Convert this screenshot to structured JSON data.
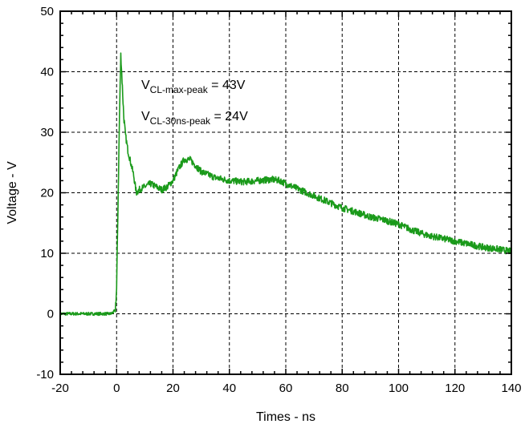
{
  "colors": {
    "series": "#1a9a1a",
    "axis": "#000000",
    "grid": "#000000"
  },
  "chart_data": {
    "type": "line",
    "xlabel": "Times - ns",
    "ylabel": "Voltage - V",
    "xlim": [
      -20,
      140
    ],
    "ylim": [
      -10,
      50
    ],
    "xticks": [
      -20,
      0,
      20,
      40,
      60,
      80,
      100,
      120,
      140
    ],
    "yticks": [
      -10,
      0,
      10,
      20,
      30,
      40,
      50
    ],
    "grid": true,
    "annotations": [
      {
        "main": "V",
        "sub": "CL-max-peak",
        "rest": " = 43V"
      },
      {
        "main": "V",
        "sub": "CL-30ns-peak",
        "rest": " = 24V"
      }
    ],
    "series": [
      {
        "x": [
          -20,
          -10,
          -2,
          -0.5,
          0,
          0.5,
          1,
          1.5,
          2,
          2.5,
          3,
          4,
          5,
          6,
          7,
          8,
          10,
          12,
          14,
          16,
          18,
          20,
          22,
          24,
          26,
          28,
          30,
          35,
          40,
          45,
          50,
          55,
          58,
          60,
          65,
          70,
          75,
          80,
          85,
          90,
          95,
          100,
          105,
          110,
          115,
          120,
          125,
          130,
          135,
          140
        ],
        "y": [
          0,
          0,
          0,
          0.5,
          4,
          18,
          32,
          43,
          38,
          33,
          30,
          27,
          25,
          23,
          20,
          20.5,
          21,
          21.5,
          21,
          20.5,
          21,
          22,
          24,
          25.5,
          25.5,
          24.5,
          23.5,
          22.5,
          22,
          21.8,
          22,
          22.2,
          22,
          21.5,
          20.5,
          19.5,
          18.5,
          17.5,
          16.8,
          16,
          15.5,
          14.8,
          13.8,
          13,
          12.5,
          12,
          11.5,
          11,
          10.7,
          10.3
        ]
      }
    ]
  }
}
